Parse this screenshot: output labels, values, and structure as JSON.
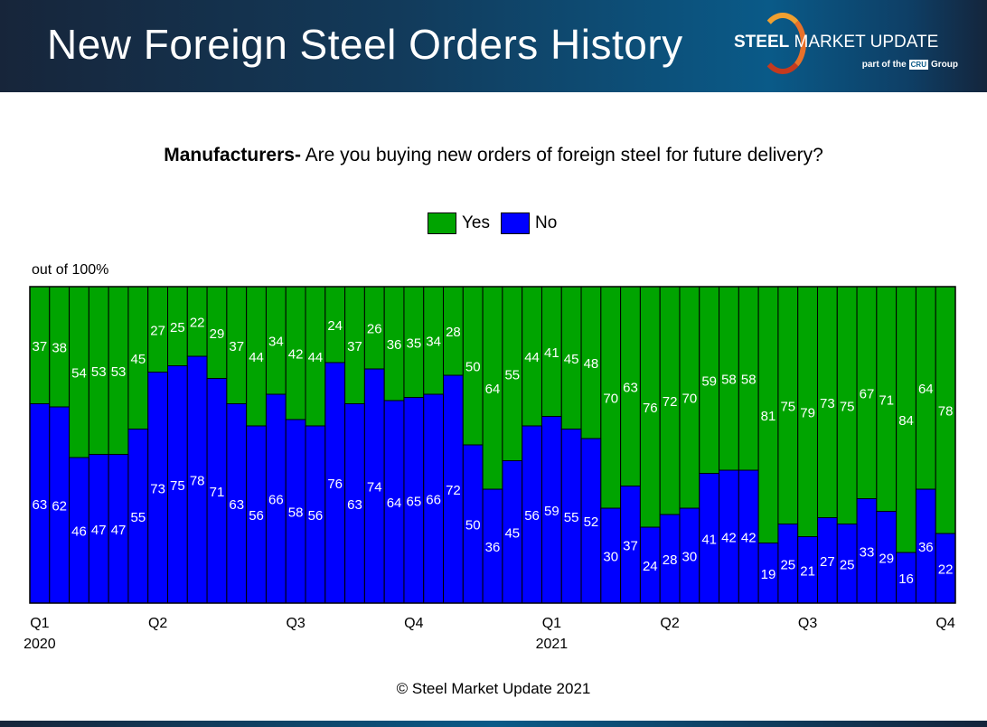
{
  "header": {
    "title": "New Foreign Steel Orders History"
  },
  "logo": {
    "brand_bold": "STEEL",
    "brand_rest": " MARKET UPDATE",
    "sub_prefix": "part of the",
    "sub_badge": "CRU",
    "sub_suffix": "Group"
  },
  "footer": "© Steel Market Update 2021",
  "chart_data": {
    "type": "bar",
    "stacked": true,
    "title_bold": "Manufacturers-",
    "title": " Are you buying new orders of foreign steel for future delivery?",
    "ylabel": "out of 100%",
    "ylim": [
      0,
      100
    ],
    "grid": false,
    "legend_position": "top",
    "colors": {
      "Yes": "#00a400",
      "No": "#0000ff"
    },
    "x_tick_labels": [
      {
        "index": 0,
        "label": "Q1",
        "year": "2020"
      },
      {
        "index": 6,
        "label": "Q2",
        "year": ""
      },
      {
        "index": 13,
        "label": "Q3",
        "year": ""
      },
      {
        "index": 19,
        "label": "Q4",
        "year": ""
      },
      {
        "index": 26,
        "label": "Q1",
        "year": "2021"
      },
      {
        "index": 32,
        "label": "Q2",
        "year": ""
      },
      {
        "index": 39,
        "label": "Q3",
        "year": ""
      },
      {
        "index": 46,
        "label": "Q4",
        "year": ""
      }
    ],
    "series": [
      {
        "name": "Yes",
        "values": [
          37,
          38,
          54,
          53,
          53,
          45,
          27,
          25,
          22,
          29,
          37,
          44,
          34,
          42,
          44,
          24,
          37,
          26,
          36,
          35,
          34,
          28,
          50,
          64,
          55,
          44,
          41,
          45,
          48,
          70,
          63,
          76,
          72,
          70,
          59,
          58,
          58,
          81,
          75,
          79,
          73,
          75,
          67,
          71,
          84,
          64,
          78
        ]
      },
      {
        "name": "No",
        "values": [
          63,
          62,
          46,
          47,
          47,
          55,
          73,
          75,
          78,
          71,
          63,
          56,
          66,
          58,
          56,
          76,
          63,
          74,
          64,
          65,
          66,
          72,
          50,
          36,
          45,
          56,
          59,
          55,
          52,
          30,
          37,
          24,
          28,
          30,
          41,
          42,
          42,
          19,
          25,
          21,
          27,
          25,
          33,
          29,
          16,
          36,
          22
        ]
      }
    ]
  }
}
